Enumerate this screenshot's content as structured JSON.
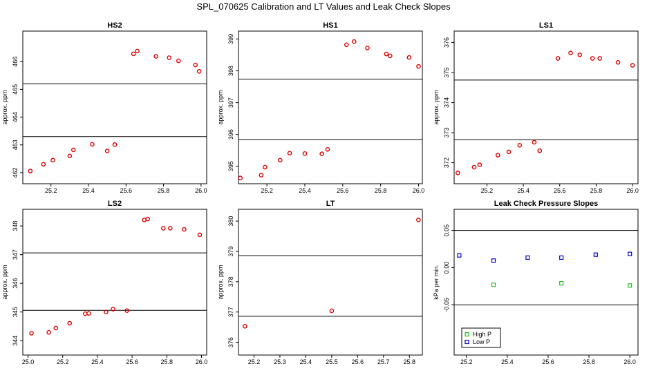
{
  "figure": {
    "title": "SPL_070625  Calibration and LT Values and Leak Check Slopes"
  },
  "colors": {
    "red": "#dd0000",
    "green": "#22bb22",
    "blue": "#0000cc",
    "axis": "#000000"
  },
  "chart_data": [
    {
      "id": "hs2",
      "type": "scatter",
      "title": "HS2",
      "ylabel": "approx. ppm",
      "xlim": [
        25.05,
        26.03
      ],
      "ylim": [
        461.6,
        467.1
      ],
      "xticks": [
        "25.2",
        "25.4",
        "25.6",
        "25.8",
        "26.0"
      ],
      "xtick_values": [
        25.2,
        25.4,
        25.6,
        25.8,
        26.0
      ],
      "yticks": [
        "462",
        "463",
        "464",
        "465",
        "466"
      ],
      "ytick_values": [
        462,
        463,
        464,
        465,
        466
      ],
      "hlines": [
        465.2,
        463.3
      ],
      "series": [
        {
          "color": "red",
          "marker": "circle",
          "x": [
            25.09,
            25.16,
            25.21,
            25.3,
            25.32,
            25.42,
            25.5,
            25.54,
            25.64,
            25.66,
            25.76,
            25.83,
            25.88,
            25.97,
            25.99
          ],
          "y": [
            462.06,
            462.3,
            462.45,
            462.6,
            462.82,
            463.02,
            462.78,
            463.01,
            466.28,
            466.38,
            466.19,
            466.14,
            466.03,
            465.88,
            465.65
          ]
        }
      ]
    },
    {
      "id": "hs1",
      "type": "scatter",
      "title": "HS1",
      "ylabel": "approx. ppm",
      "xlim": [
        25.05,
        26.02
      ],
      "ylim": [
        394.45,
        399.25
      ],
      "xticks": [
        "25.2",
        "25.4",
        "25.6",
        "25.8",
        "26.0"
      ],
      "xtick_values": [
        25.2,
        25.4,
        25.6,
        25.8,
        26.0
      ],
      "yticks": [
        "395",
        "396",
        "397",
        "398",
        "399"
      ],
      "ytick_values": [
        395,
        396,
        397,
        398,
        399
      ],
      "hlines": [
        397.74,
        395.84
      ],
      "series": [
        {
          "color": "red",
          "marker": "circle",
          "x": [
            25.06,
            25.17,
            25.19,
            25.27,
            25.32,
            25.4,
            25.49,
            25.52,
            25.62,
            25.66,
            25.73,
            25.83,
            25.85,
            25.95,
            26.0
          ],
          "y": [
            394.63,
            394.72,
            394.97,
            395.19,
            395.41,
            395.4,
            395.39,
            395.53,
            398.82,
            398.92,
            398.72,
            398.53,
            398.47,
            398.42,
            398.14
          ]
        }
      ]
    },
    {
      "id": "ls1",
      "type": "scatter",
      "title": "LS1",
      "ylabel": "approx. ppm",
      "xlim": [
        25.02,
        26.03
      ],
      "ylim": [
        371.3,
        376.38
      ],
      "xticks": [
        "25.2",
        "25.4",
        "25.6",
        "25.8",
        "26.0"
      ],
      "xtick_values": [
        25.2,
        25.4,
        25.6,
        25.8,
        26.0
      ],
      "yticks": [
        "372",
        "373",
        "374",
        "375",
        "376"
      ],
      "ytick_values": [
        372,
        373,
        374,
        375,
        376
      ],
      "hlines": [
        374.75,
        372.76
      ],
      "series": [
        {
          "color": "red",
          "marker": "circle",
          "x": [
            25.04,
            25.13,
            25.16,
            25.26,
            25.32,
            25.38,
            25.46,
            25.49,
            25.59,
            25.66,
            25.71,
            25.78,
            25.82,
            25.92,
            26.0
          ],
          "y": [
            371.66,
            371.85,
            371.93,
            372.25,
            372.36,
            372.58,
            372.68,
            372.4,
            375.47,
            375.65,
            375.59,
            375.47,
            375.47,
            375.34,
            375.24
          ]
        }
      ]
    },
    {
      "id": "ls2",
      "type": "scatter",
      "title": "LS2",
      "ylabel": "approx. ppm",
      "xlim": [
        24.97,
        26.03
      ],
      "ylim": [
        343.5,
        348.58
      ],
      "xticks": [
        "25.0",
        "25.2",
        "25.4",
        "25.6",
        "25.8",
        "26.0"
      ],
      "xtick_values": [
        25.0,
        25.2,
        25.4,
        25.6,
        25.8,
        26.0
      ],
      "yticks": [
        "344",
        "345",
        "346",
        "347",
        "348"
      ],
      "ytick_values": [
        344,
        345,
        346,
        347,
        348
      ],
      "hlines": [
        347.06,
        345.06
      ],
      "series": [
        {
          "color": "red",
          "marker": "circle",
          "x": [
            25.02,
            25.12,
            25.16,
            25.24,
            25.33,
            25.35,
            25.45,
            25.49,
            25.57,
            25.67,
            25.69,
            25.78,
            25.82,
            25.9,
            25.99
          ],
          "y": [
            344.26,
            344.29,
            344.44,
            344.61,
            344.94,
            344.95,
            345.0,
            345.1,
            345.05,
            348.21,
            348.24,
            347.92,
            347.92,
            347.88,
            347.69
          ]
        }
      ]
    },
    {
      "id": "lt",
      "type": "scatter",
      "title": "LT",
      "ylabel": "approx. ppm",
      "xlim": [
        25.14,
        25.85
      ],
      "ylim": [
        375.58,
        380.39
      ],
      "xticks": [
        "25.2",
        "25.3",
        "25.4",
        "25.5",
        "25.6",
        "25.7",
        "25.8"
      ],
      "xtick_values": [
        25.2,
        25.3,
        25.4,
        25.5,
        25.6,
        25.7,
        25.8
      ],
      "yticks": [
        "376",
        "377",
        "378",
        "379",
        "380"
      ],
      "ytick_values": [
        376,
        377,
        378,
        379,
        380
      ],
      "hlines": [
        378.86,
        376.86
      ],
      "series": [
        {
          "color": "red",
          "marker": "circle",
          "x": [
            25.165,
            25.5,
            25.835
          ],
          "y": [
            376.53,
            377.04,
            380.04
          ]
        }
      ]
    },
    {
      "id": "leak",
      "type": "scatter",
      "title": "Leak Check Pressure Slopes",
      "ylabel": "kPa per min.",
      "xlim": [
        25.14,
        26.04
      ],
      "ylim": [
        -0.1175,
        0.0785
      ],
      "xticks": [
        "25.2",
        "25.4",
        "25.6",
        "25.8",
        "26.0"
      ],
      "xtick_values": [
        25.2,
        25.4,
        25.6,
        25.8,
        26.0
      ],
      "yticks": [
        "-0.05",
        "0.00",
        "0.05"
      ],
      "ytick_values": [
        -0.05,
        0.0,
        0.05
      ],
      "hlines": [
        0.05,
        -0.05
      ],
      "legend": {
        "position": "bottom-left",
        "entries": [
          {
            "label": "High P",
            "color": "green"
          },
          {
            "label": "Low P",
            "color": "blue"
          }
        ]
      },
      "series": [
        {
          "name": "High P",
          "color": "green",
          "marker": "square",
          "x": [
            25.333,
            25.665,
            26.0
          ],
          "y": [
            -0.023,
            -0.021,
            -0.024
          ]
        },
        {
          "name": "Low P",
          "color": "blue",
          "marker": "square",
          "x": [
            25.165,
            25.333,
            25.5,
            25.665,
            25.833,
            26.0
          ],
          "y": [
            0.0165,
            0.0095,
            0.0135,
            0.0135,
            0.0175,
            0.0185
          ]
        }
      ]
    }
  ]
}
